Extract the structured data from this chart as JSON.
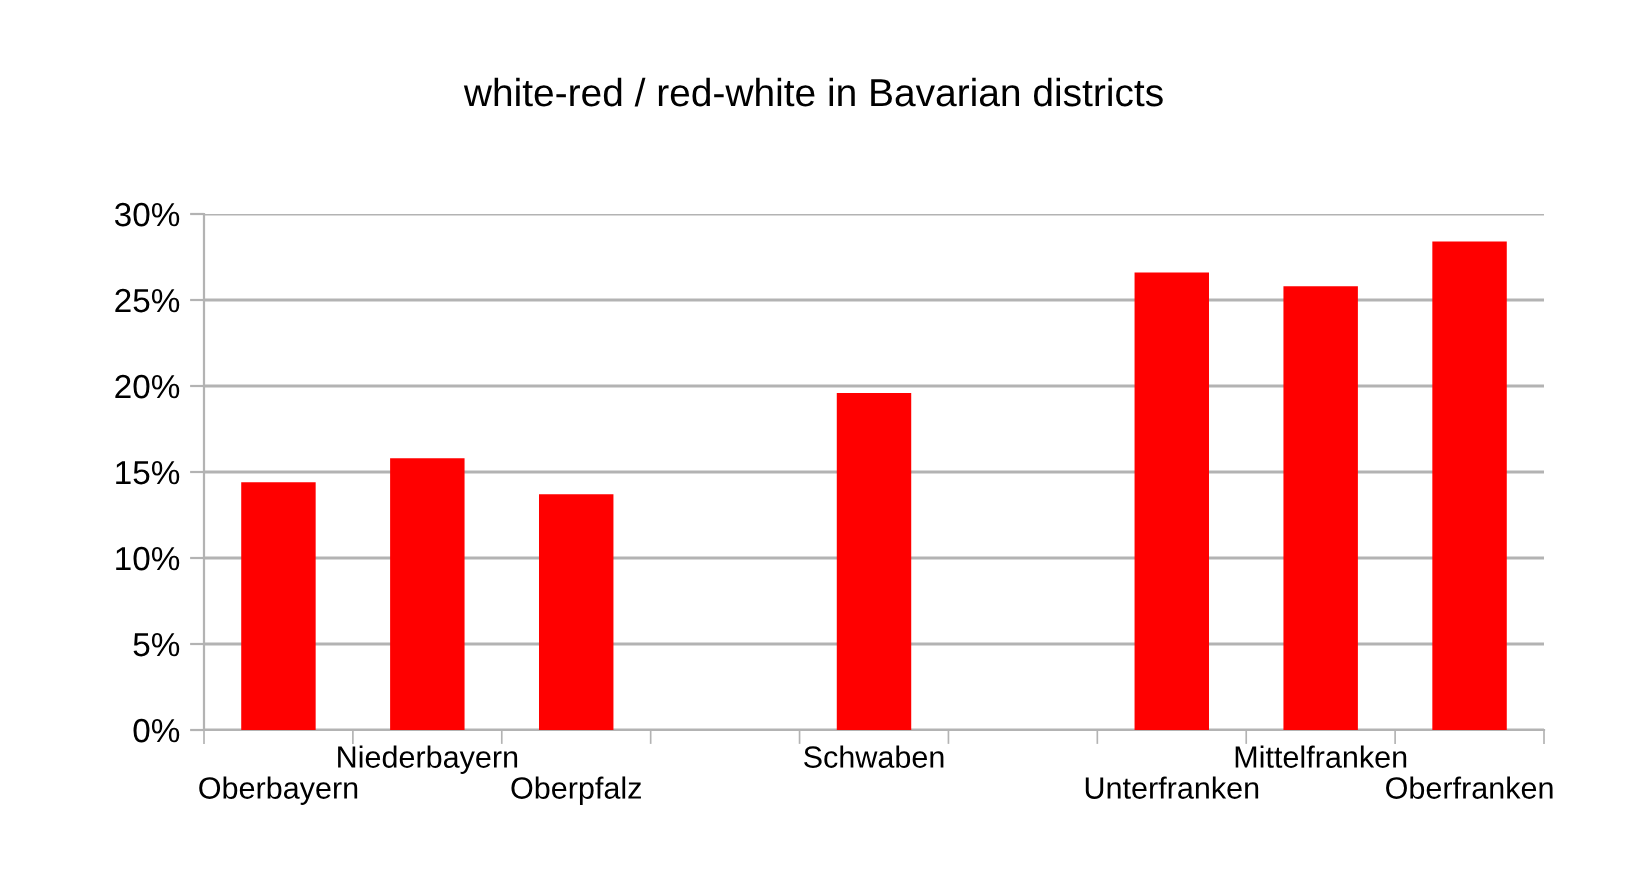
{
  "chart_data": {
    "type": "bar",
    "title": "white-red / red-white in Bavarian districts",
    "categories": [
      "Oberbayern",
      "Niederbayern",
      "Oberpfalz",
      null,
      "Schwaben",
      null,
      "Unterfranken",
      "Mittelfranken",
      "Oberfranken"
    ],
    "values": [
      14.4,
      15.8,
      13.7,
      null,
      19.6,
      null,
      26.6,
      25.8,
      28.4
    ],
    "color": "#ff0000",
    "ylim": [
      0,
      30
    ],
    "yticks": [
      {
        "value": 0,
        "label": "0%"
      },
      {
        "value": 5,
        "label": "5%"
      },
      {
        "value": 10,
        "label": "10%"
      },
      {
        "value": 15,
        "label": "15%"
      },
      {
        "value": 20,
        "label": "20%"
      },
      {
        "value": 25,
        "label": "25%"
      },
      {
        "value": 30,
        "label": "30%"
      }
    ],
    "grid": "y"
  }
}
